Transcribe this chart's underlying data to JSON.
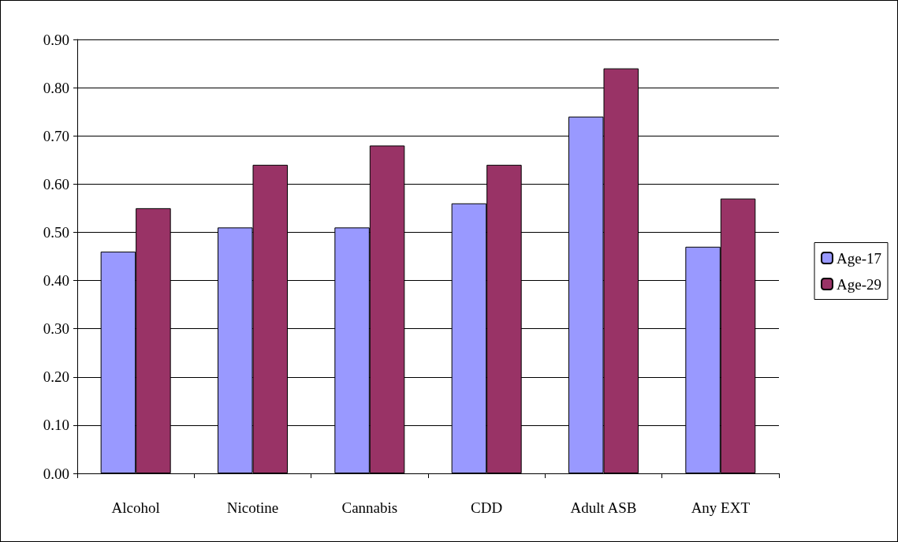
{
  "chart_data": {
    "type": "bar",
    "categories": [
      "Alcohol",
      "Nicotine",
      "Cannabis",
      "CDD",
      "Adult ASB",
      "Any EXT"
    ],
    "series": [
      {
        "name": "Age-17",
        "color": "#9999ff",
        "values": [
          0.46,
          0.51,
          0.51,
          0.56,
          0.74,
          0.47
        ]
      },
      {
        "name": "Age-29",
        "color": "#993366",
        "values": [
          0.55,
          0.64,
          0.68,
          0.64,
          0.84,
          0.57
        ]
      }
    ],
    "ylim": [
      0,
      0.9
    ],
    "yticks": [
      {
        "value": 0,
        "label": "0.00"
      },
      {
        "value": 0.1,
        "label": "0.10"
      },
      {
        "value": 0.2,
        "label": "0.20"
      },
      {
        "value": 0.3,
        "label": "0.30"
      },
      {
        "value": 0.4,
        "label": "0.40"
      },
      {
        "value": 0.5,
        "label": "0.50"
      },
      {
        "value": 0.6,
        "label": "0.60"
      },
      {
        "value": 0.7,
        "label": "0.70"
      },
      {
        "value": 0.8,
        "label": "0.80"
      },
      {
        "value": 0.9,
        "label": "0.90"
      }
    ],
    "grid": "y",
    "legend": "right"
  }
}
